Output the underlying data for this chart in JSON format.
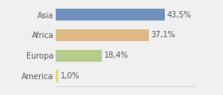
{
  "categories": [
    "Asia",
    "Africa",
    "Europa",
    "America"
  ],
  "values": [
    43.5,
    37.1,
    18.4,
    1.0
  ],
  "labels": [
    "43,5%",
    "37,1%",
    "18,4%",
    "1,0%"
  ],
  "bar_colors": [
    "#7090c0",
    "#e0b882",
    "#b8cc8a",
    "#e8d860"
  ],
  "background_color": "#f0f0f0",
  "xlim": [
    0,
    56
  ],
  "bar_height": 0.6,
  "label_fontsize": 7.0,
  "tick_fontsize": 7.0,
  "label_color": "#555555",
  "tick_color": "#555555"
}
